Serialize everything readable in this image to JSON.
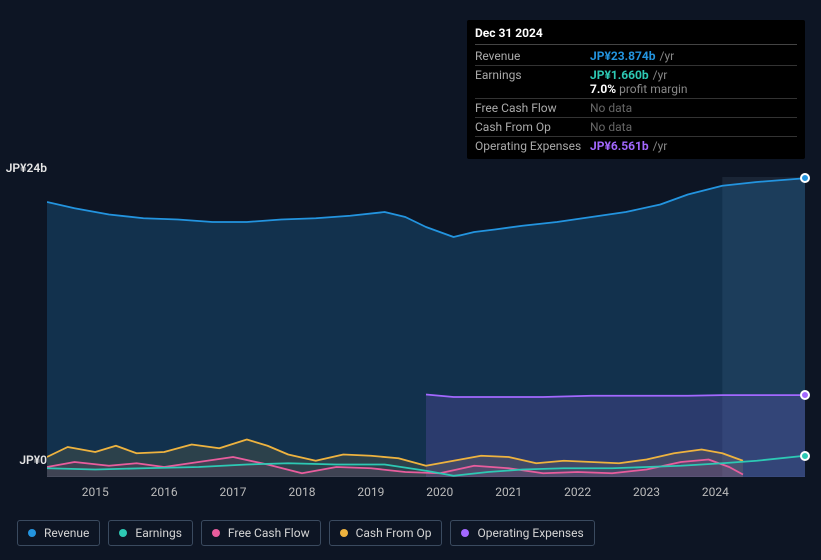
{
  "colors": {
    "background": "#0d1524",
    "tooltip_bg": "#000000",
    "grid_text": "#e5e5e5",
    "x_axis_text": "#bbbbbb",
    "legend_border": "#3a4a5f",
    "future_separator": "#3a4a5f"
  },
  "tooltip": {
    "title": "Dec 31 2024",
    "rows": [
      {
        "label": "Revenue",
        "value": "JP¥23.874b",
        "color": "#2394df",
        "suffix": "/yr",
        "sub": null
      },
      {
        "label": "Earnings",
        "value": "JP¥1.660b",
        "color": "#2dc9b4",
        "suffix": "/yr",
        "sub": "7.0% profit margin"
      },
      {
        "label": "Free Cash Flow",
        "value": null,
        "color": null,
        "suffix": null,
        "sub": null
      },
      {
        "label": "Cash From Op",
        "value": null,
        "color": null,
        "suffix": null,
        "sub": null
      },
      {
        "label": "Operating Expenses",
        "value": "JP¥6.561b",
        "color": "#a368ff",
        "suffix": "/yr",
        "sub": null
      }
    ],
    "nodata_text": "No data",
    "sub_prefix": "7.0%",
    "sub_rest": "profit margin"
  },
  "chart": {
    "type": "area",
    "y_axis": {
      "min": 0,
      "max": 24,
      "unit_prefix": "JP¥",
      "unit_suffix": "b",
      "labels": [
        {
          "v": 24,
          "text": "JP¥24b"
        },
        {
          "v": 0,
          "text": "JP¥0"
        }
      ]
    },
    "x_axis": {
      "ticks": [
        "2015",
        "2016",
        "2017",
        "2018",
        "2019",
        "2020",
        "2021",
        "2022",
        "2023",
        "2024"
      ],
      "min_year": 2014.3,
      "max_year": 2025.3
    },
    "past_future_split_year": 2024.1,
    "series": [
      {
        "key": "revenue",
        "name": "Revenue",
        "color": "#2394df",
        "end_marker": true,
        "fill_opacity": 0.22,
        "points": [
          [
            2014.3,
            22.0
          ],
          [
            2014.7,
            21.5
          ],
          [
            2015.2,
            21.0
          ],
          [
            2015.7,
            20.7
          ],
          [
            2016.2,
            20.6
          ],
          [
            2016.7,
            20.4
          ],
          [
            2017.2,
            20.4
          ],
          [
            2017.7,
            20.6
          ],
          [
            2018.2,
            20.7
          ],
          [
            2018.7,
            20.9
          ],
          [
            2019.2,
            21.2
          ],
          [
            2019.5,
            20.8
          ],
          [
            2019.8,
            20.0
          ],
          [
            2020.2,
            19.2
          ],
          [
            2020.5,
            19.6
          ],
          [
            2020.8,
            19.8
          ],
          [
            2021.2,
            20.1
          ],
          [
            2021.7,
            20.4
          ],
          [
            2022.2,
            20.8
          ],
          [
            2022.7,
            21.2
          ],
          [
            2023.2,
            21.8
          ],
          [
            2023.6,
            22.6
          ],
          [
            2024.1,
            23.3
          ],
          [
            2024.6,
            23.6
          ],
          [
            2025.3,
            23.9
          ]
        ]
      },
      {
        "key": "opex",
        "name": "Operating Expenses",
        "color": "#a368ff",
        "end_marker": true,
        "fill_opacity": 0.18,
        "points": [
          [
            2019.8,
            6.6
          ],
          [
            2020.2,
            6.4
          ],
          [
            2020.8,
            6.4
          ],
          [
            2021.5,
            6.4
          ],
          [
            2022.2,
            6.5
          ],
          [
            2023.0,
            6.5
          ],
          [
            2023.6,
            6.5
          ],
          [
            2024.1,
            6.55
          ],
          [
            2024.6,
            6.55
          ],
          [
            2025.3,
            6.55
          ]
        ]
      },
      {
        "key": "cash_from_op",
        "name": "Cash From Op",
        "color": "#eeb33f",
        "end_marker": false,
        "fill_opacity": 0.12,
        "points": [
          [
            2014.3,
            1.6
          ],
          [
            2014.6,
            2.4
          ],
          [
            2015.0,
            2.0
          ],
          [
            2015.3,
            2.5
          ],
          [
            2015.6,
            1.9
          ],
          [
            2016.0,
            2.0
          ],
          [
            2016.4,
            2.6
          ],
          [
            2016.8,
            2.3
          ],
          [
            2017.2,
            3.0
          ],
          [
            2017.5,
            2.5
          ],
          [
            2017.8,
            1.8
          ],
          [
            2018.2,
            1.3
          ],
          [
            2018.6,
            1.8
          ],
          [
            2019.0,
            1.7
          ],
          [
            2019.4,
            1.5
          ],
          [
            2019.8,
            0.9
          ],
          [
            2020.2,
            1.3
          ],
          [
            2020.6,
            1.7
          ],
          [
            2021.0,
            1.6
          ],
          [
            2021.4,
            1.1
          ],
          [
            2021.8,
            1.3
          ],
          [
            2022.2,
            1.2
          ],
          [
            2022.6,
            1.1
          ],
          [
            2023.0,
            1.4
          ],
          [
            2023.4,
            1.9
          ],
          [
            2023.8,
            2.2
          ],
          [
            2024.1,
            1.9
          ],
          [
            2024.4,
            1.3
          ]
        ]
      },
      {
        "key": "fcf",
        "name": "Free Cash Flow",
        "color": "#e85d9d",
        "end_marker": false,
        "fill_opacity": 0.1,
        "points": [
          [
            2014.3,
            0.8
          ],
          [
            2014.7,
            1.2
          ],
          [
            2015.2,
            0.9
          ],
          [
            2015.6,
            1.1
          ],
          [
            2016.0,
            0.8
          ],
          [
            2016.5,
            1.2
          ],
          [
            2017.0,
            1.6
          ],
          [
            2017.5,
            1.0
          ],
          [
            2018.0,
            0.3
          ],
          [
            2018.5,
            0.8
          ],
          [
            2019.0,
            0.7
          ],
          [
            2019.5,
            0.4
          ],
          [
            2020.0,
            0.3
          ],
          [
            2020.5,
            0.9
          ],
          [
            2021.0,
            0.7
          ],
          [
            2021.5,
            0.3
          ],
          [
            2022.0,
            0.4
          ],
          [
            2022.5,
            0.3
          ],
          [
            2023.0,
            0.6
          ],
          [
            2023.5,
            1.2
          ],
          [
            2023.9,
            1.4
          ],
          [
            2024.2,
            0.8
          ],
          [
            2024.4,
            0.2
          ]
        ]
      },
      {
        "key": "earnings",
        "name": "Earnings",
        "color": "#2dc9b4",
        "end_marker": true,
        "fill_opacity": 0.0,
        "points": [
          [
            2014.3,
            0.7
          ],
          [
            2015.0,
            0.6
          ],
          [
            2015.7,
            0.7
          ],
          [
            2016.5,
            0.8
          ],
          [
            2017.2,
            1.0
          ],
          [
            2017.8,
            1.1
          ],
          [
            2018.5,
            1.0
          ],
          [
            2019.2,
            1.0
          ],
          [
            2019.8,
            0.5
          ],
          [
            2020.2,
            0.1
          ],
          [
            2020.7,
            0.4
          ],
          [
            2021.2,
            0.6
          ],
          [
            2021.8,
            0.7
          ],
          [
            2022.5,
            0.7
          ],
          [
            2023.0,
            0.8
          ],
          [
            2023.5,
            0.9
          ],
          [
            2024.1,
            1.1
          ],
          [
            2024.6,
            1.3
          ],
          [
            2025.3,
            1.7
          ]
        ]
      }
    ],
    "legend_order": [
      "revenue",
      "earnings",
      "fcf",
      "cash_from_op",
      "opex"
    ]
  }
}
